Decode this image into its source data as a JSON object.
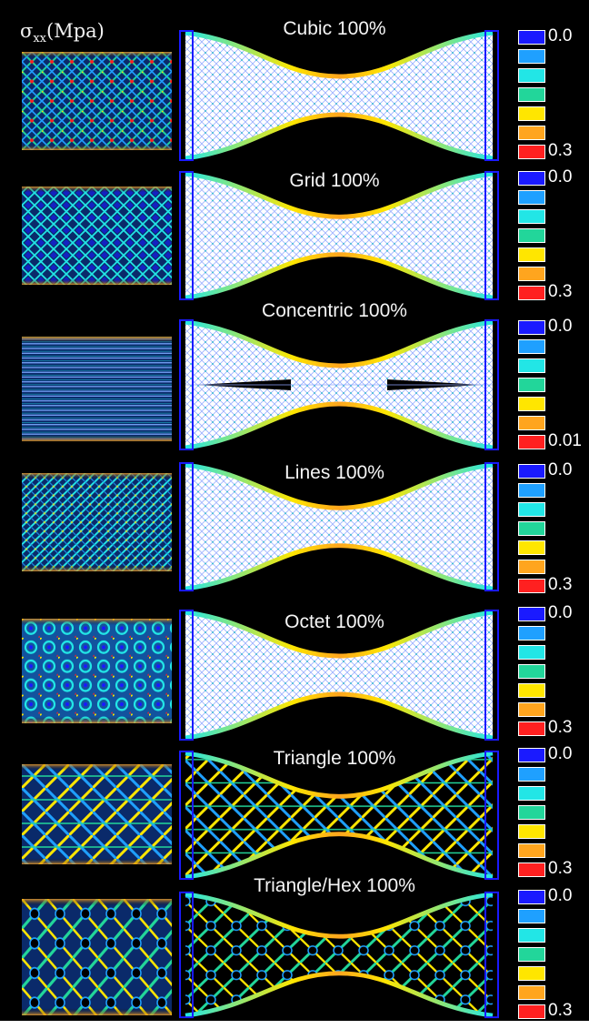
{
  "header": {
    "sigma": "σ",
    "sub": "xx",
    "unit": "(Mpa)"
  },
  "legend_colors": [
    "#1a1aff",
    "#1fa0ff",
    "#22e6e6",
    "#22d69a",
    "#ffe600",
    "#ffa51e",
    "#ff2020"
  ],
  "rows": [
    {
      "title": "Cubic 100%",
      "legend_min": "0.0",
      "legend_max": "0.3",
      "pattern": "cubic-lattice"
    },
    {
      "title": "Grid 100%",
      "legend_min": "0.0",
      "legend_max": "0.3",
      "pattern": "grid-lattice"
    },
    {
      "title": "Concentric 100%",
      "legend_min": "0.0",
      "legend_max": "0.01",
      "pattern": "concentric-lines"
    },
    {
      "title": "Lines 100%",
      "legend_min": "0.0",
      "legend_max": "0.3",
      "pattern": "line-lattice"
    },
    {
      "title": "Octet 100%",
      "legend_min": "0.0",
      "legend_max": "0.3",
      "pattern": "octet-lattice"
    },
    {
      "title": "Triangle 100%",
      "legend_min": "0.0",
      "legend_max": "0.3",
      "pattern": "triangle-lattice"
    },
    {
      "title": "Triangle/Hex 100%",
      "legend_min": "0.0",
      "legend_max": "0.3",
      "pattern": "trihex-lattice"
    }
  ]
}
